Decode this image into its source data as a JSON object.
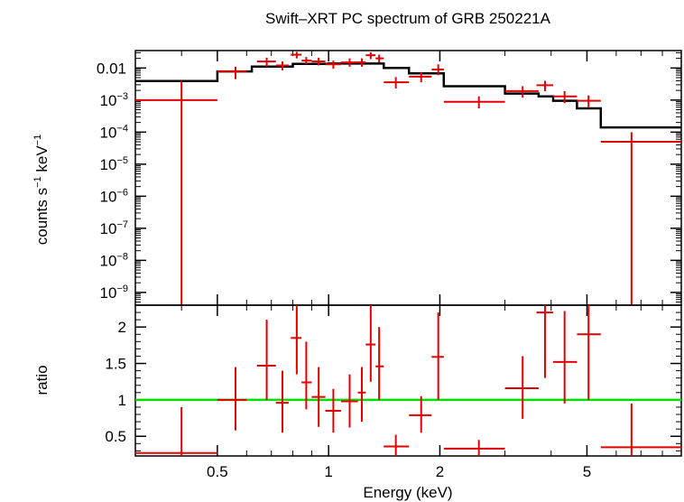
{
  "chart_data": {
    "type": "scatter",
    "title": "Swift–XRT PC spectrum of GRB 250221A",
    "xlabel": "Energy (keV)",
    "xscale": "log",
    "xlim": [
      0.3,
      9.0
    ],
    "xticks": [
      {
        "value": 0.5,
        "label": "0.5"
      },
      {
        "value": 1,
        "label": "1"
      },
      {
        "value": 2,
        "label": "2"
      },
      {
        "value": 5,
        "label": "5"
      }
    ],
    "colors": {
      "data": "#e00000",
      "model": "#000000",
      "unity": "#00dd00"
    },
    "panels": [
      {
        "id": "spectrum",
        "ylabel": {
          "main": "counts s",
          "exp1": "−1",
          "mid": " keV",
          "exp2": "−1"
        },
        "yscale": "log",
        "ylim": [
          4e-10,
          0.035
        ],
        "yticks": [
          {
            "value": 0.01,
            "base": "0.01",
            "exp": ""
          },
          {
            "value": 0.001,
            "base": "10",
            "exp": "−3"
          },
          {
            "value": 0.0001,
            "base": "10",
            "exp": "−4"
          },
          {
            "value": 1e-05,
            "base": "10",
            "exp": "−5"
          },
          {
            "value": 1e-06,
            "base": "10",
            "exp": "−6"
          },
          {
            "value": 1e-07,
            "base": "10",
            "exp": "−7"
          },
          {
            "value": 1e-08,
            "base": "10",
            "exp": "−8"
          },
          {
            "value": 1e-09,
            "base": "10",
            "exp": "−9"
          }
        ],
        "series": [
          {
            "kind": "data",
            "points": [
              {
                "x": 0.4,
                "xlo": 0.3,
                "xhi": 0.5,
                "y": 0.001,
                "ylo": 4e-10,
                "yhi": 0.004
              },
              {
                "x": 0.56,
                "xlo": 0.5,
                "xhi": 0.6,
                "y": 0.0078,
                "ylo": 0.0045,
                "yhi": 0.011
              },
              {
                "x": 0.68,
                "xlo": 0.64,
                "xhi": 0.72,
                "y": 0.016,
                "ylo": 0.011,
                "yhi": 0.021
              },
              {
                "x": 0.75,
                "xlo": 0.72,
                "xhi": 0.78,
                "y": 0.012,
                "ylo": 0.0085,
                "yhi": 0.016
              },
              {
                "x": 0.82,
                "xlo": 0.79,
                "xhi": 0.845,
                "y": 0.026,
                "ylo": 0.02,
                "yhi": 0.032
              },
              {
                "x": 0.87,
                "xlo": 0.845,
                "xhi": 0.9,
                "y": 0.017,
                "ylo": 0.013,
                "yhi": 0.022
              },
              {
                "x": 0.94,
                "xlo": 0.9,
                "xhi": 0.98,
                "y": 0.016,
                "ylo": 0.012,
                "yhi": 0.021
              },
              {
                "x": 1.03,
                "xlo": 0.98,
                "xhi": 1.08,
                "y": 0.013,
                "ylo": 0.0095,
                "yhi": 0.017
              },
              {
                "x": 1.14,
                "xlo": 1.08,
                "xhi": 1.2,
                "y": 0.015,
                "ylo": 0.011,
                "yhi": 0.02
              },
              {
                "x": 1.23,
                "xlo": 1.2,
                "xhi": 1.26,
                "y": 0.015,
                "ylo": 0.011,
                "yhi": 0.02
              },
              {
                "x": 1.3,
                "xlo": 1.26,
                "xhi": 1.34,
                "y": 0.025,
                "ylo": 0.019,
                "yhi": 0.031
              },
              {
                "x": 1.37,
                "xlo": 1.34,
                "xhi": 1.41,
                "y": 0.02,
                "ylo": 0.015,
                "yhi": 0.026
              },
              {
                "x": 1.52,
                "xlo": 1.41,
                "xhi": 1.65,
                "y": 0.0036,
                "ylo": 0.0023,
                "yhi": 0.0052
              },
              {
                "x": 1.78,
                "xlo": 1.65,
                "xhi": 1.9,
                "y": 0.0054,
                "ylo": 0.0036,
                "yhi": 0.0075
              },
              {
                "x": 1.98,
                "xlo": 1.9,
                "xhi": 2.05,
                "y": 0.009,
                "ylo": 0.006,
                "yhi": 0.013
              },
              {
                "x": 2.55,
                "xlo": 2.05,
                "xhi": 3.0,
                "y": 0.00088,
                "ylo": 0.00055,
                "yhi": 0.0013
              },
              {
                "x": 3.35,
                "xlo": 3.0,
                "xhi": 3.7,
                "y": 0.0019,
                "ylo": 0.0012,
                "yhi": 0.0027
              },
              {
                "x": 3.85,
                "xlo": 3.65,
                "xhi": 4.05,
                "y": 0.0029,
                "ylo": 0.0019,
                "yhi": 0.004
              },
              {
                "x": 4.35,
                "xlo": 4.05,
                "xhi": 4.7,
                "y": 0.0013,
                "ylo": 0.0008,
                "yhi": 0.0019
              },
              {
                "x": 5.05,
                "xlo": 4.7,
                "xhi": 5.45,
                "y": 0.00095,
                "ylo": 0.0006,
                "yhi": 0.0014
              },
              {
                "x": 6.6,
                "xlo": 5.45,
                "xhi": 9.0,
                "y": 5e-05,
                "ylo": 4e-10,
                "yhi": 0.0001
              }
            ]
          },
          {
            "kind": "model",
            "steps": [
              {
                "xlo": 0.3,
                "xhi": 0.5,
                "y": 0.0039
              },
              {
                "xlo": 0.5,
                "xhi": 0.62,
                "y": 0.0078
              },
              {
                "xlo": 0.62,
                "xhi": 0.8,
                "y": 0.011
              },
              {
                "xlo": 0.8,
                "xhi": 1.0,
                "y": 0.0135
              },
              {
                "xlo": 1.0,
                "xhi": 1.41,
                "y": 0.0138
              },
              {
                "xlo": 1.41,
                "xhi": 1.65,
                "y": 0.01
              },
              {
                "xlo": 1.65,
                "xhi": 2.05,
                "y": 0.0068
              },
              {
                "xlo": 2.05,
                "xhi": 3.0,
                "y": 0.0027
              },
              {
                "xlo": 3.0,
                "xhi": 3.7,
                "y": 0.0016
              },
              {
                "xlo": 3.7,
                "xhi": 4.05,
                "y": 0.0013
              },
              {
                "xlo": 4.05,
                "xhi": 4.7,
                "y": 0.00095
              },
              {
                "xlo": 4.7,
                "xhi": 5.45,
                "y": 0.00055
              },
              {
                "xlo": 5.45,
                "xhi": 9.0,
                "y": 0.00014
              }
            ]
          }
        ]
      },
      {
        "id": "ratio",
        "ylabel": "ratio",
        "yscale": "linear",
        "ylim": [
          0.23,
          2.3
        ],
        "yticks": [
          {
            "value": 0.5,
            "label": "0.5"
          },
          {
            "value": 1,
            "label": "1"
          },
          {
            "value": 1.5,
            "label": "1.5"
          },
          {
            "value": 2,
            "label": "2"
          }
        ],
        "reference_line": 1,
        "points": [
          {
            "x": 0.4,
            "xlo": 0.3,
            "xhi": 0.5,
            "y": 0.27,
            "ylo": 0.23,
            "yhi": 0.9
          },
          {
            "x": 0.56,
            "xlo": 0.5,
            "xhi": 0.6,
            "y": 1.0,
            "ylo": 0.58,
            "yhi": 1.45
          },
          {
            "x": 0.68,
            "xlo": 0.64,
            "xhi": 0.72,
            "y": 1.47,
            "ylo": 1.0,
            "yhi": 2.1
          },
          {
            "x": 0.75,
            "xlo": 0.72,
            "xhi": 0.78,
            "y": 0.96,
            "ylo": 0.55,
            "yhi": 1.4
          },
          {
            "x": 0.82,
            "xlo": 0.79,
            "xhi": 0.845,
            "y": 1.85,
            "ylo": 1.35,
            "yhi": 2.3
          },
          {
            "x": 0.87,
            "xlo": 0.845,
            "xhi": 0.9,
            "y": 1.24,
            "ylo": 0.87,
            "yhi": 1.8
          },
          {
            "x": 0.94,
            "xlo": 0.9,
            "xhi": 0.98,
            "y": 1.04,
            "ylo": 0.63,
            "yhi": 1.45
          },
          {
            "x": 1.03,
            "xlo": 0.98,
            "xhi": 1.08,
            "y": 0.85,
            "ylo": 0.55,
            "yhi": 1.15
          },
          {
            "x": 1.14,
            "xlo": 1.08,
            "xhi": 1.2,
            "y": 0.98,
            "ylo": 0.62,
            "yhi": 1.35
          },
          {
            "x": 1.23,
            "xlo": 1.2,
            "xhi": 1.26,
            "y": 1.1,
            "ylo": 0.7,
            "yhi": 1.45
          },
          {
            "x": 1.3,
            "xlo": 1.26,
            "xhi": 1.34,
            "y": 1.76,
            "ylo": 1.25,
            "yhi": 2.3
          },
          {
            "x": 1.37,
            "xlo": 1.34,
            "xhi": 1.41,
            "y": 1.46,
            "ylo": 1.0,
            "yhi": 2.0
          },
          {
            "x": 1.52,
            "xlo": 1.41,
            "xhi": 1.65,
            "y": 0.36,
            "ylo": 0.23,
            "yhi": 0.52
          },
          {
            "x": 1.78,
            "xlo": 1.65,
            "xhi": 1.9,
            "y": 0.79,
            "ylo": 0.55,
            "yhi": 1.05
          },
          {
            "x": 1.98,
            "xlo": 1.9,
            "xhi": 2.05,
            "y": 1.59,
            "ylo": 1.0,
            "yhi": 2.2
          },
          {
            "x": 2.55,
            "xlo": 2.05,
            "xhi": 3.0,
            "y": 0.33,
            "ylo": 0.23,
            "yhi": 0.45
          },
          {
            "x": 3.35,
            "xlo": 3.0,
            "xhi": 3.7,
            "y": 1.16,
            "ylo": 0.74,
            "yhi": 1.6
          },
          {
            "x": 3.85,
            "xlo": 3.65,
            "xhi": 4.05,
            "y": 2.2,
            "ylo": 1.3,
            "yhi": 2.3
          },
          {
            "x": 4.35,
            "xlo": 4.05,
            "xhi": 4.7,
            "y": 1.52,
            "ylo": 0.95,
            "yhi": 2.22
          },
          {
            "x": 5.05,
            "xlo": 4.7,
            "xhi": 5.45,
            "y": 1.9,
            "ylo": 1.0,
            "yhi": 2.3
          },
          {
            "x": 6.6,
            "xlo": 5.45,
            "xhi": 9.0,
            "y": 0.35,
            "ylo": 0.23,
            "yhi": 0.95
          }
        ]
      }
    ]
  }
}
